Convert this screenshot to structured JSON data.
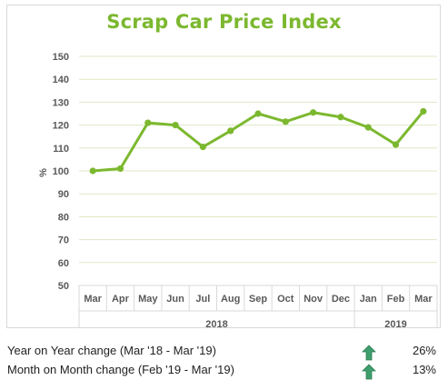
{
  "chart_data": {
    "type": "line",
    "title": "Scrap Car Price Index",
    "ylabel": "%",
    "categories": [
      "Mar",
      "Apr",
      "May",
      "Jun",
      "Jul",
      "Aug",
      "Sep",
      "Oct",
      "Nov",
      "Dec",
      "Jan",
      "Feb",
      "Mar"
    ],
    "year_groups": [
      {
        "label": "2018",
        "start": 0,
        "end": 9
      },
      {
        "label": "2019",
        "start": 10,
        "end": 12
      }
    ],
    "series": [
      {
        "values": [
          100,
          101,
          121,
          120,
          110.5,
          117.5,
          125,
          121.5,
          125.5,
          123.5,
          119,
          111.5,
          126
        ]
      }
    ],
    "ylim": [
      50,
      150
    ],
    "yticks": [
      50,
      60,
      70,
      80,
      90,
      100,
      110,
      120,
      130,
      140,
      150
    ],
    "grid": true,
    "line_color": "#7cb82f",
    "grid_color": "#dde8c4"
  },
  "stats": [
    {
      "label": "Year on Year change (Mar '18 - Mar '19)",
      "icon": "up-arrow-icon",
      "value": "26%"
    },
    {
      "label": "Month on Month change (Feb '19 - Mar '19)",
      "icon": "up-arrow-icon",
      "value": "13%"
    }
  ],
  "colors": {
    "accent": "#7cb82f",
    "arrow": "#3f9e6d"
  }
}
